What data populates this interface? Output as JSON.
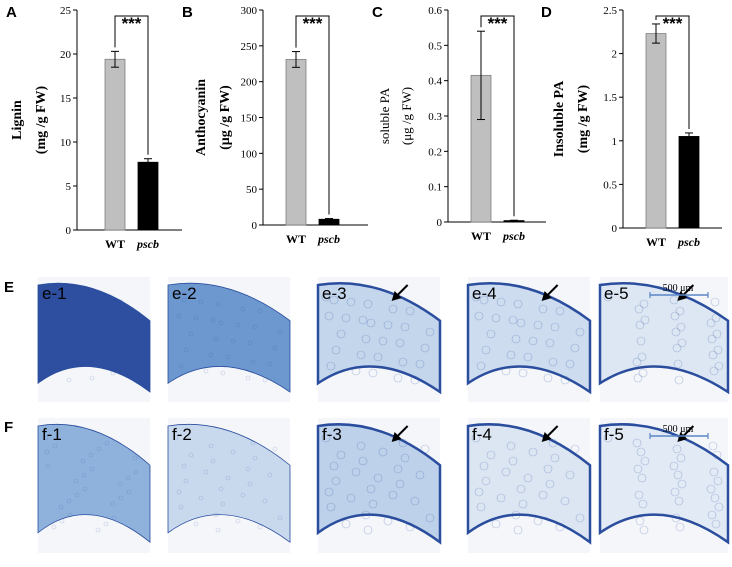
{
  "chart_data": [
    {
      "panel": "A",
      "type": "bar",
      "ylabel_lines": [
        "Lignin",
        "(mg /g FW)"
      ],
      "categories": [
        "WT",
        "pscb"
      ],
      "values": [
        19.4,
        7.7
      ],
      "errors": [
        0.9,
        0.4
      ],
      "ylim": [
        0,
        25
      ],
      "yticks": [
        0,
        5,
        10,
        15,
        20,
        25
      ],
      "significance": "***"
    },
    {
      "panel": "B",
      "type": "bar",
      "ylabel_lines": [
        "Anthocyanin",
        "(μg /g FW)"
      ],
      "categories": [
        "WT",
        "pscb"
      ],
      "values": [
        231,
        8
      ],
      "errors": [
        11,
        1
      ],
      "ylim": [
        0,
        300
      ],
      "yticks": [
        0,
        50,
        100,
        150,
        200,
        250,
        300
      ],
      "significance": "***"
    },
    {
      "panel": "C",
      "type": "bar",
      "ylabel_lines": [
        "soluble PA",
        "(μg /g FW)"
      ],
      "categories": [
        "WT",
        "pscb"
      ],
      "values": [
        0.415,
        0.004
      ],
      "errors": [
        0.125,
        0.001
      ],
      "ylim": [
        0,
        0.6
      ],
      "yticks": [
        0,
        0.1,
        0.2,
        0.3,
        0.4,
        0.5,
        0.6
      ],
      "significance": "***"
    },
    {
      "panel": "D",
      "type": "bar",
      "ylabel_lines": [
        "Insoluble PA",
        "(mg /g FW)"
      ],
      "categories": [
        "WT",
        "pscb"
      ],
      "values": [
        2.23,
        1.05
      ],
      "errors": [
        0.11,
        0.04
      ],
      "ylim": [
        0,
        2.5
      ],
      "yticks": [
        0,
        0.5,
        1,
        1.5,
        2,
        2.5
      ],
      "significance": "***"
    }
  ],
  "micrographs": {
    "E": {
      "panel": "E",
      "labels": [
        "e-1",
        "e-2",
        "e-3",
        "e-4",
        "e-5"
      ],
      "scale_bar": "500 μm",
      "bg": [
        "#2e4fa0",
        "#6d97cf",
        "#c4d6ec",
        "#cddcef",
        "#dde7f3"
      ]
    },
    "F": {
      "panel": "F",
      "labels": [
        "f-1",
        "f-2",
        "f-3",
        "f-4",
        "f-5"
      ],
      "scale_bar": "500 μm",
      "bg": [
        "#8fb2dc",
        "#c8d9ee",
        "#bdd1ea",
        "#dce6f3",
        "#e2eaf5"
      ]
    }
  },
  "colors": {
    "wt": "#bfbfbf",
    "mutant": "#000000",
    "stain": "#2a4d9e"
  }
}
